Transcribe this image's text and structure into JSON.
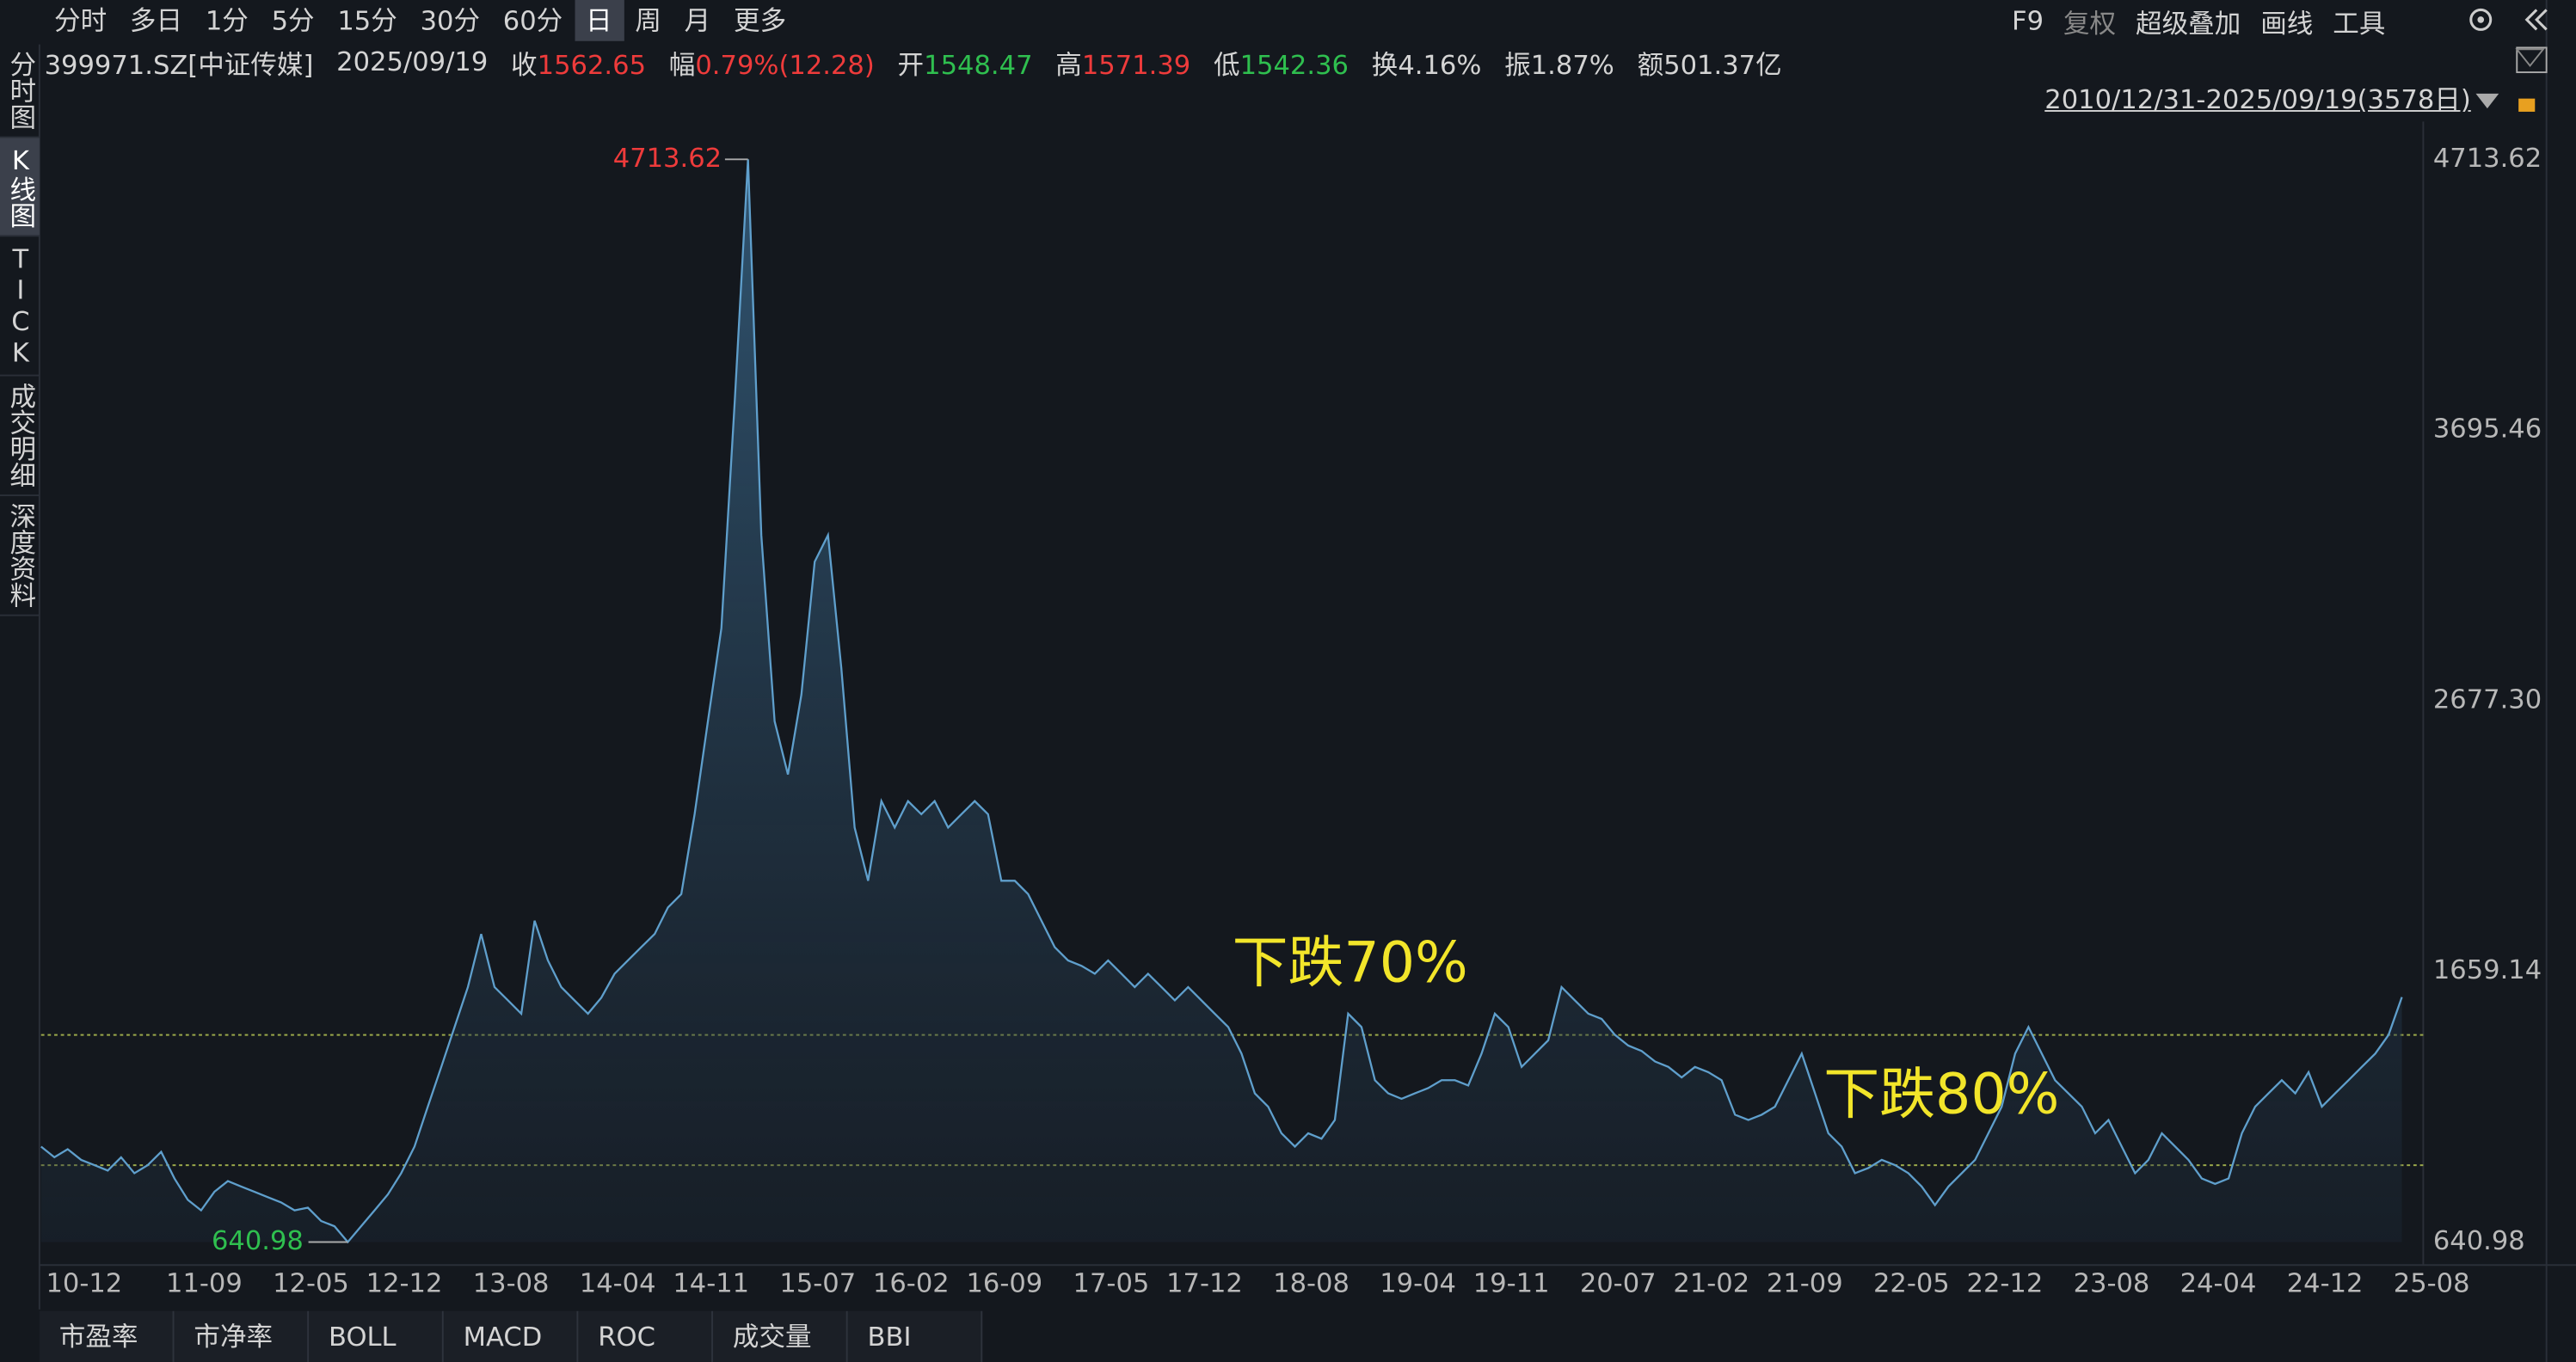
{
  "toolbar": {
    "periods": [
      "分时",
      "多日",
      "1分",
      "5分",
      "15分",
      "30分",
      "60分",
      "日",
      "周",
      "月",
      "更多"
    ],
    "active": 7,
    "tools": [
      "F9",
      "复权",
      "超级叠加",
      "画线",
      "工具"
    ]
  },
  "side_tabs": {
    "items": [
      "分时图",
      "K线图",
      "TICK",
      "成交明细",
      "深度资料"
    ],
    "active": 1
  },
  "header": {
    "symbol": "399971.SZ[中证传媒]",
    "date": "2025/09/19",
    "items": [
      {
        "label": "收",
        "value": "1562.65",
        "color": "#ee3b3b"
      },
      {
        "label": "幅",
        "value": "0.79%(12.28)",
        "color": "#ee3b3b"
      },
      {
        "label": "开",
        "value": "1548.47",
        "color": "#2fbf4f"
      },
      {
        "label": "高",
        "value": "1571.39",
        "color": "#ee3b3b"
      },
      {
        "label": "低",
        "value": "1542.36",
        "color": "#2fbf4f"
      },
      {
        "label": "换",
        "value": "4.16%",
        "color": "#d4d4d4"
      },
      {
        "label": "振",
        "value": "1.87%",
        "color": "#d4d4d4"
      },
      {
        "label": "额",
        "value": "501.37亿",
        "color": "#d4d4d4"
      }
    ],
    "range": "2010/12/31-2025/09/19(3578日)"
  },
  "chart_data": {
    "type": "area",
    "categories": [
      "10-12",
      null,
      null,
      null,
      null,
      null,
      null,
      null,
      null,
      "11-09",
      null,
      null,
      null,
      null,
      null,
      null,
      null,
      "12-05",
      null,
      null,
      null,
      null,
      null,
      null,
      "12-12",
      null,
      null,
      null,
      null,
      null,
      null,
      null,
      "13-08",
      null,
      null,
      null,
      null,
      null,
      null,
      null,
      "14-04",
      null,
      null,
      null,
      null,
      null,
      null,
      "14-11",
      null,
      null,
      null,
      null,
      null,
      null,
      null,
      "15-07",
      null,
      null,
      null,
      null,
      null,
      null,
      "16-02",
      null,
      null,
      null,
      null,
      null,
      null,
      "16-09",
      null,
      null,
      null,
      null,
      null,
      null,
      null,
      "17-05",
      null,
      null,
      null,
      null,
      null,
      null,
      "17-12",
      null,
      null,
      null,
      null,
      null,
      null,
      null,
      "18-08",
      null,
      null,
      null,
      null,
      null,
      null,
      null,
      "19-04",
      null,
      null,
      null,
      null,
      null,
      null,
      "19-11",
      null,
      null,
      null,
      null,
      null,
      null,
      null,
      "20-07",
      null,
      null,
      null,
      null,
      null,
      null,
      "21-02",
      null,
      null,
      null,
      null,
      null,
      null,
      "21-09",
      null,
      null,
      null,
      null,
      null,
      null,
      null,
      "22-05",
      null,
      null,
      null,
      null,
      null,
      null,
      "22-12",
      null,
      null,
      null,
      null,
      null,
      null,
      null,
      "23-08",
      null,
      null,
      null,
      null,
      null,
      null,
      null,
      "24-04",
      null,
      null,
      null,
      null,
      null,
      null,
      null,
      "24-12",
      null,
      null,
      null,
      null,
      null,
      null,
      null,
      "25-08",
      null
    ],
    "series": [
      {
        "color": "#5f9fcc",
        "values": [
          1000,
          960,
          990,
          950,
          930,
          910,
          960,
          900,
          930,
          980,
          880,
          800,
          760,
          830,
          870,
          850,
          830,
          810,
          790,
          760,
          770,
          720,
          700,
          640.98,
          700,
          760,
          820,
          900,
          1000,
          1150,
          1300,
          1450,
          1600,
          1800,
          1600,
          1550,
          1500,
          1850,
          1700,
          1600,
          1550,
          1500,
          1560,
          1650,
          1700,
          1750,
          1800,
          1900,
          1950,
          2250,
          2600,
          2950,
          3800,
          4713.62,
          3300,
          2600,
          2400,
          2700,
          3200,
          3300,
          2800,
          2200,
          2000,
          2300,
          2200,
          2300,
          2250,
          2300,
          2200,
          2250,
          2300,
          2250,
          2000,
          2000,
          1950,
          1850,
          1750,
          1700,
          1680,
          1650,
          1700,
          1650,
          1600,
          1650,
          1600,
          1550,
          1600,
          1550,
          1500,
          1450,
          1350,
          1200,
          1150,
          1050,
          1000,
          1050,
          1030,
          1100,
          1500,
          1450,
          1250,
          1200,
          1180,
          1200,
          1220,
          1250,
          1250,
          1230,
          1350,
          1500,
          1450,
          1300,
          1350,
          1400,
          1600,
          1550,
          1500,
          1480,
          1420,
          1380,
          1360,
          1320,
          1300,
          1260,
          1300,
          1280,
          1250,
          1120,
          1100,
          1120,
          1150,
          1250,
          1350,
          1200,
          1050,
          1000,
          900,
          920,
          950,
          930,
          900,
          850,
          780,
          850,
          900,
          950,
          1050,
          1150,
          1350,
          1450,
          1350,
          1250,
          1200,
          1150,
          1050,
          1100,
          1000,
          900,
          950,
          1050,
          1000,
          950,
          880,
          860,
          880,
          1050,
          1150,
          1200,
          1250,
          1200,
          1280,
          1150,
          1200,
          1250,
          1300,
          1350,
          1420,
          1562.65
        ]
      }
    ],
    "ylim": [
      640.98,
      4713.62
    ],
    "yticks": [
      640.98,
      1659.14,
      {
        "value": 2677.3,
        "label": "2677.30"
      },
      3695.46,
      4713.62
    ],
    "grid": false,
    "high": 4713.62,
    "low": 640.98,
    "high_color": "#ee3b3b",
    "low_color": "#2fbf4f",
    "hlines": [
      1420,
      930
    ],
    "hline_color": "#9aa84a",
    "annotations": [
      "下跌70%",
      "下跌80%"
    ],
    "annotation_color": "#f2e52a"
  },
  "bottom_tabs": [
    "市盈率",
    "市净率",
    "BOLL",
    "MACD",
    "ROC",
    "成交量",
    "BBI"
  ]
}
